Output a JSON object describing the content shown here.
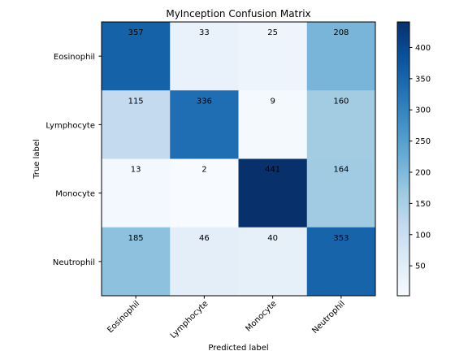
{
  "chart_data": {
    "type": "heatmap",
    "title": "MyInception Confusion Matrix",
    "xlabel": "Predicted label",
    "ylabel": "True label",
    "x_categories": [
      "Eosinophil",
      "Lymphocyte",
      "Monocyte",
      "Neutrophil"
    ],
    "y_categories": [
      "Eosinophil",
      "Lymphocyte",
      "Monocyte",
      "Neutrophil"
    ],
    "values": [
      [
        357,
        33,
        25,
        208
      ],
      [
        115,
        336,
        9,
        160
      ],
      [
        13,
        2,
        441,
        164
      ],
      [
        185,
        46,
        40,
        353
      ]
    ],
    "colormap": "Blues",
    "color_range": [
      2,
      441
    ],
    "colorbar_ticks": [
      50,
      100,
      150,
      200,
      250,
      300,
      350,
      400
    ],
    "colors": {
      "low": "#f7fbff",
      "high": "#08306b"
    }
  }
}
